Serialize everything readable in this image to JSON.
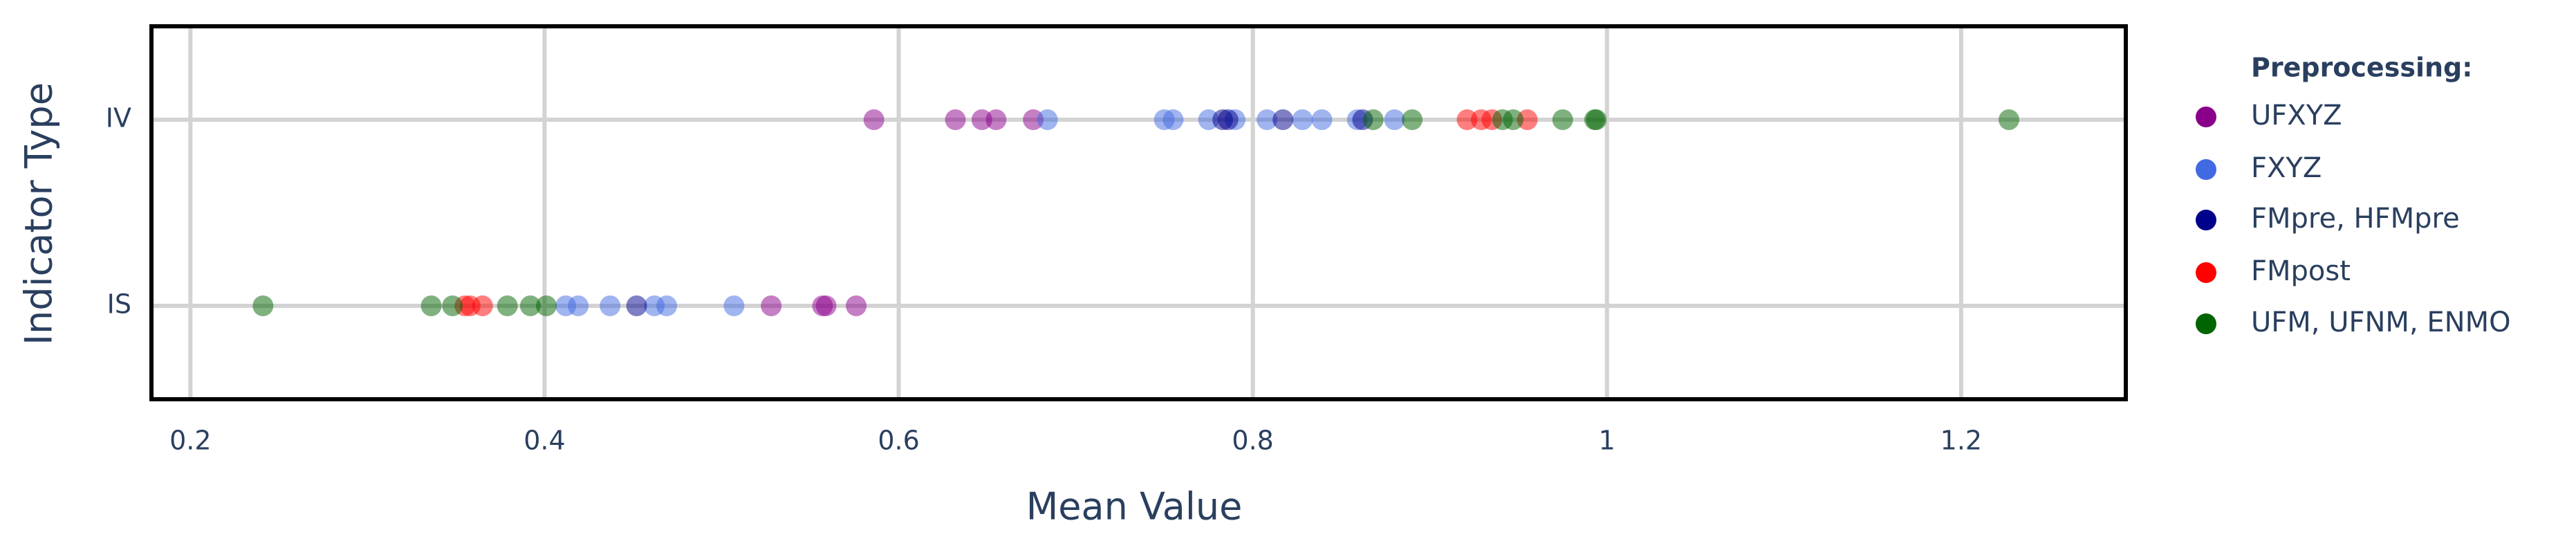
{
  "chart_data": {
    "type": "strip",
    "x_label": "Mean Value",
    "y_label": "Indicator Type",
    "categories": [
      "IS",
      "IV"
    ],
    "xlim": [
      0.178,
      1.293
    ],
    "xticks": [
      0.2,
      0.4,
      0.6,
      0.8,
      1,
      1.2
    ],
    "grid": true,
    "legend_title": "Preprocessing:",
    "legend_position": "right",
    "series": [
      {
        "name": "UFXYZ",
        "color": "#8b008b",
        "values": [
          [
            0.528,
            0.557,
            0.559,
            0.576
          ],
          [
            0.586,
            0.632,
            0.647,
            0.655,
            0.676
          ]
        ]
      },
      {
        "name": "FXYZ",
        "color": "#4169e1",
        "values": [
          [
            0.412,
            0.419,
            0.437,
            0.462,
            0.469,
            0.507
          ],
          [
            0.684,
            0.75,
            0.755,
            0.775,
            0.79,
            0.808,
            0.828,
            0.839,
            0.859,
            0.88
          ]
        ]
      },
      {
        "name": "FMpre, HFMpre",
        "color": "#00008b",
        "values": [
          [
            0.452
          ],
          [
            0.783,
            0.786,
            0.817,
            0.862
          ]
        ]
      },
      {
        "name": "FMpost",
        "color": "#ff0000",
        "values": [
          [
            0.355,
            0.358,
            0.365
          ],
          [
            0.921,
            0.929,
            0.935,
            0.955
          ]
        ]
      },
      {
        "name": "UFM, UFNM, ENMO",
        "color": "#006400",
        "values": [
          [
            0.241,
            0.336,
            0.348,
            0.379,
            0.392,
            0.401
          ],
          [
            0.868,
            0.89,
            0.941,
            0.947,
            0.975,
            0.993,
            0.994,
            1.227
          ]
        ]
      }
    ]
  }
}
